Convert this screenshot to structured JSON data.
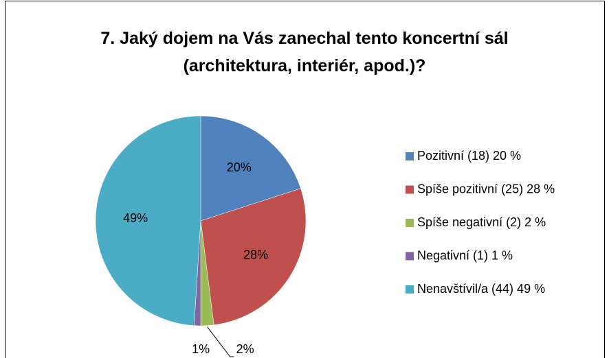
{
  "chart_data": {
    "type": "pie",
    "title": "7. Jaký dojem na Vás zanechal tento koncertní sál\n(architektura, interiér, apod.)?",
    "series": [
      {
        "name": "Pozitivní (18) 20 %",
        "color": "#4f81bd"
      },
      {
        "name": "Spíše pozitivní (25) 28 %",
        "color": "#c0504d"
      },
      {
        "name": "Spíše negativní (2) 2 %",
        "color": "#9bbb59"
      },
      {
        "name": "Negativní (1) 1 %",
        "color": "#8064a2"
      },
      {
        "name": "Nenavštívil/a (44) 49 %",
        "color": "#4bacc6"
      }
    ],
    "values": [
      20,
      28,
      2,
      1,
      49
    ],
    "value_labels": [
      "20%",
      "28%",
      "2%",
      "1%",
      "49%"
    ],
    "legend": "right"
  }
}
